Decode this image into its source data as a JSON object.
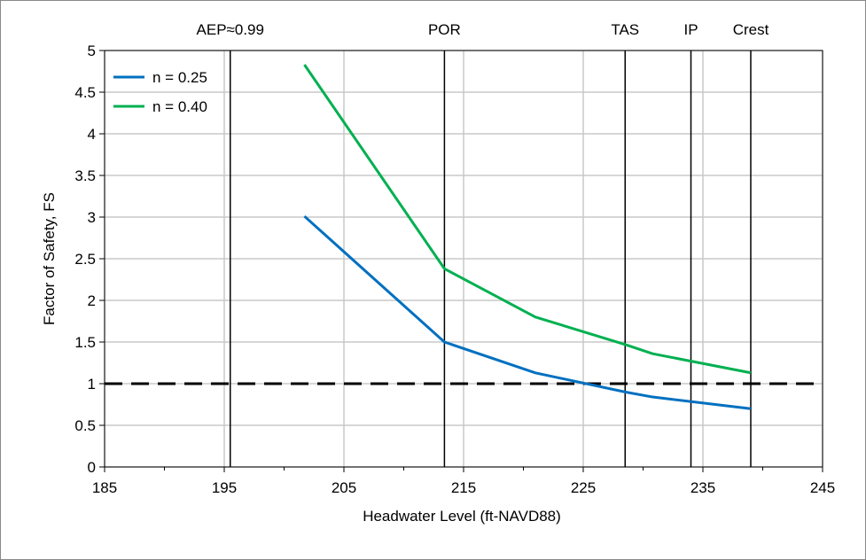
{
  "chart_data": {
    "type": "line",
    "title": "",
    "xlabel": "Headwater  Level  (ft-NAVD88)",
    "ylabel": "Factor of Safety, FS",
    "xlim": [
      185,
      245
    ],
    "ylim": [
      0,
      5
    ],
    "xticks": [
      185,
      195,
      205,
      215,
      225,
      235,
      245
    ],
    "yticks": [
      0,
      0.5,
      1,
      1.5,
      2,
      2.5,
      3,
      3.5,
      4,
      4.5,
      5
    ],
    "ytick_labels": [
      "0",
      "0.5",
      "1",
      "1.5",
      "2",
      "2.5",
      "3",
      "3.5",
      "4",
      "4.5",
      "5"
    ],
    "grid": true,
    "legend_position": "top-left",
    "series": [
      {
        "name": "n = 0.25",
        "color": "#0070C0",
        "x": [
          201.7,
          213.4,
          221.0,
          228.5,
          230.8,
          239.0
        ],
        "y": [
          3.01,
          1.5,
          1.13,
          0.9,
          0.84,
          0.7
        ]
      },
      {
        "name": "n = 0.40",
        "color": "#00B050",
        "x": [
          201.7,
          213.4,
          221.0,
          228.5,
          230.8,
          239.0
        ],
        "y": [
          4.83,
          2.38,
          1.8,
          1.47,
          1.36,
          1.13
        ]
      }
    ],
    "reference_lines": [
      {
        "orientation": "horizontal",
        "value": 1,
        "style": "dashed",
        "color": "#000000"
      },
      {
        "orientation": "vertical",
        "value": 195.5,
        "label": "AEP≈0.99"
      },
      {
        "orientation": "vertical",
        "value": 213.4,
        "label": "POR"
      },
      {
        "orientation": "vertical",
        "value": 228.5,
        "label": "TAS"
      },
      {
        "orientation": "vertical",
        "value": 234.0,
        "label": "IP"
      },
      {
        "orientation": "vertical",
        "value": 239.0,
        "label": "Crest"
      }
    ]
  }
}
